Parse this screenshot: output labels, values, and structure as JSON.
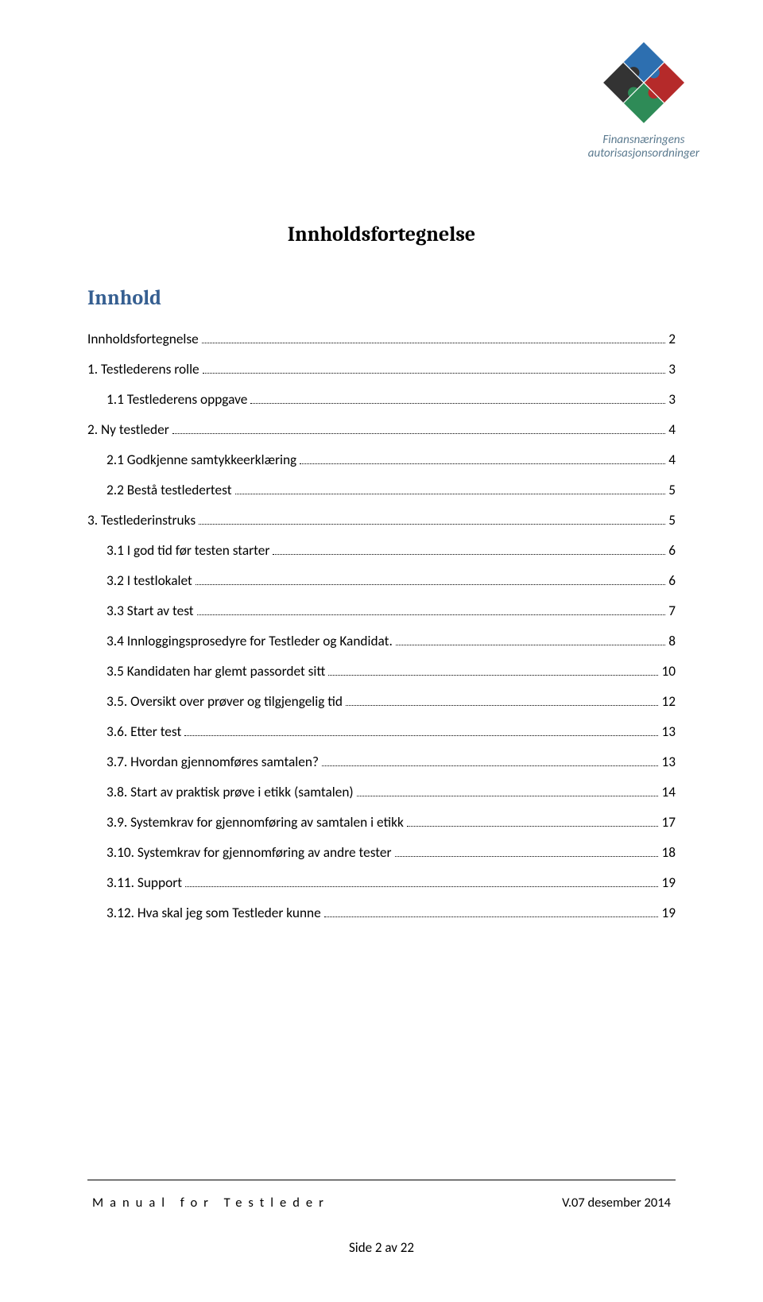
{
  "logo": {
    "line1": "Finansnæringens",
    "line2": "autorisasjonsordninger",
    "piece_colors": [
      "#2d6fb0",
      "#b52a2a",
      "#2e8b57",
      "#333333"
    ],
    "text_color": "#5b7a8f"
  },
  "title": "Innholdsfortegnelse",
  "subtitle": "Innhold",
  "toc": [
    {
      "label": "Innholdsfortegnelse",
      "page": "2",
      "sub": false
    },
    {
      "label": "1.   Testlederens rolle",
      "page": "3",
      "sub": false
    },
    {
      "label": "1.1   Testlederens oppgave",
      "page": "3",
      "sub": true
    },
    {
      "label": "2.   Ny testleder",
      "page": "4",
      "sub": false
    },
    {
      "label": "2.1   Godkjenne samtykkeerklæring",
      "page": "4",
      "sub": true
    },
    {
      "label": "2.2   Bestå testledertest",
      "page": "5",
      "sub": true
    },
    {
      "label": "3.   Testlederinstruks",
      "page": "5",
      "sub": false
    },
    {
      "label": "3.1   I god tid før testen starter",
      "page": "6",
      "sub": true
    },
    {
      "label": "3.2   I testlokalet",
      "page": "6",
      "sub": true
    },
    {
      "label": "3.3   Start av test",
      "page": "7",
      "sub": true
    },
    {
      "label": "3.4   Innloggingsprosedyre for Testleder og Kandidat.",
      "page": "8",
      "sub": true
    },
    {
      "label": "3.5   Kandidaten har glemt passordet sitt",
      "page": "10",
      "sub": true
    },
    {
      "label": "3.5.  Oversikt over prøver og tilgjengelig tid",
      "page": "12",
      "sub": true
    },
    {
      "label": "3.6.  Etter test",
      "page": "13",
      "sub": true
    },
    {
      "label": "3.7.  Hvordan gjennomføres samtalen?",
      "page": "13",
      "sub": true
    },
    {
      "label": "3.8.  Start av praktisk prøve i etikk (samtalen)",
      "page": "14",
      "sub": true
    },
    {
      "label": "3.9.  Systemkrav for gjennomføring av samtalen i etikk",
      "page": "17",
      "sub": true
    },
    {
      "label": "3.10.  Systemkrav for gjennomføring av andre tester",
      "page": "18",
      "sub": true
    },
    {
      "label": "3.11.  Support",
      "page": "19",
      "sub": true
    },
    {
      "label": "3.12.  Hva skal jeg som Testleder kunne",
      "page": "19",
      "sub": true
    }
  ],
  "footer": {
    "title": "Manual for Testleder",
    "version": "V.07 desember 2014",
    "page_label": "Side 2 av 22"
  }
}
